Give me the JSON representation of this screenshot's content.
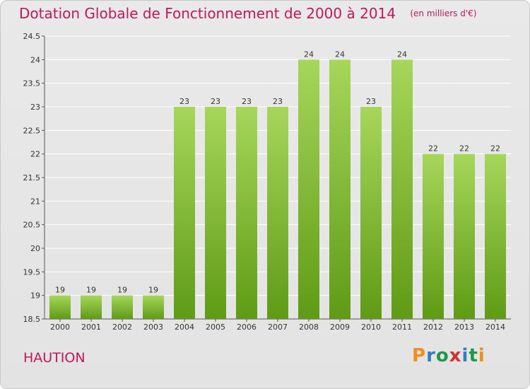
{
  "header": {
    "title": "Dotation Globale de Fonctionnement de 2000 à 2014",
    "unit": "(en milliers d'€)"
  },
  "commune": "HAUTION",
  "logo": {
    "text": "Proxiti",
    "colors": [
      "#f28c1b",
      "#2e7fc0",
      "#1b9a4a",
      "#d62f2f",
      "#2e7fc0",
      "#1b9a4a",
      "#f28c1b"
    ]
  },
  "colors": {
    "bar_light": "#a6d65a",
    "bar_dark": "#5f9b15",
    "title": "#c2185b",
    "grid": "#ffffff"
  },
  "chart_data": {
    "type": "bar",
    "categories": [
      "2000",
      "2001",
      "2002",
      "2003",
      "2004",
      "2005",
      "2006",
      "2007",
      "2008",
      "2009",
      "2010",
      "2011",
      "2012",
      "2013",
      "2014"
    ],
    "values": [
      19,
      19,
      19,
      19,
      23,
      23,
      23,
      23,
      24,
      24,
      23,
      24,
      22,
      22,
      22
    ],
    "data_labels": [
      "19",
      "19",
      "19",
      "19",
      "23",
      "23",
      "23",
      "23",
      "24",
      "24",
      "23",
      "24",
      "22",
      "22",
      "22"
    ],
    "yticks": [
      "18.5",
      "19",
      "19.5",
      "20",
      "20.5",
      "21",
      "21.5",
      "22",
      "22.5",
      "23",
      "23.5",
      "24",
      "24.5"
    ],
    "ylim": [
      18.5,
      24.5
    ],
    "grid": true,
    "title": "Dotation Globale de Fonctionnement de 2000 à 2014",
    "xlabel": "",
    "ylabel": ""
  }
}
